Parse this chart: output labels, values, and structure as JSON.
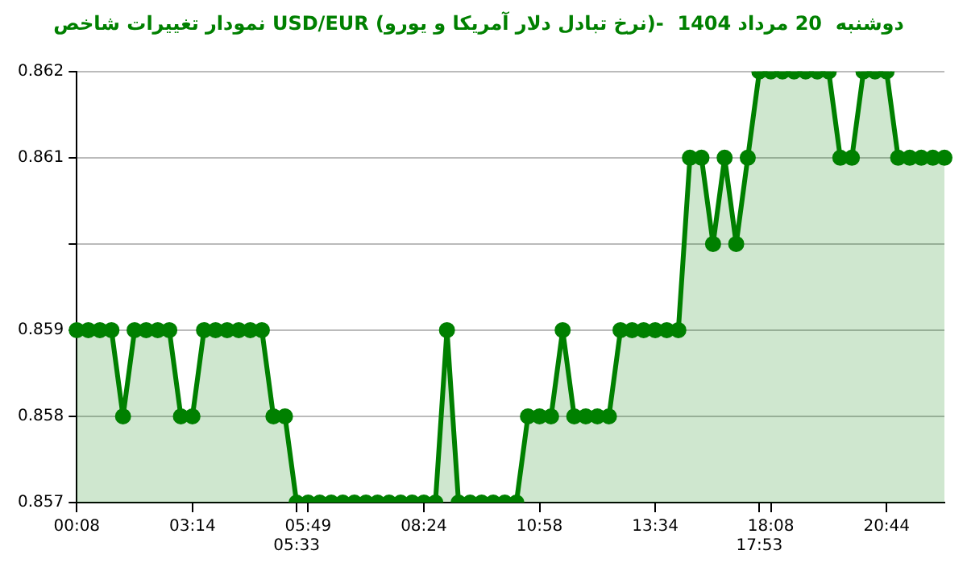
{
  "chart_data": {
    "type": "area",
    "title": "نمودار تغییرات شاخص USD/EUR (نرخ تبادل دلار آمریکا و یورو)-  دوشنبه  20 مرداد 1404",
    "categories": [
      "00:08",
      null,
      null,
      null,
      null,
      null,
      null,
      null,
      null,
      null,
      "03:14",
      null,
      null,
      null,
      null,
      null,
      null,
      null,
      null,
      "05:33",
      "05:49",
      null,
      null,
      null,
      null,
      null,
      null,
      null,
      null,
      null,
      "08:24",
      null,
      null,
      null,
      null,
      null,
      null,
      null,
      null,
      null,
      "10:58",
      null,
      null,
      null,
      null,
      null,
      null,
      null,
      null,
      null,
      "13:34",
      null,
      null,
      null,
      null,
      null,
      null,
      null,
      null,
      "17:53",
      "18:08",
      null,
      null,
      null,
      null,
      null,
      null,
      null,
      null,
      null,
      "20:44",
      null,
      null,
      null,
      null,
      null
    ],
    "series": [
      {
        "color": "#008000",
        "values": [
          0.859,
          0.859,
          0.859,
          0.859,
          0.858,
          0.859,
          0.859,
          0.859,
          0.859,
          0.858,
          0.858,
          0.859,
          0.859,
          0.859,
          0.859,
          0.859,
          0.859,
          0.858,
          0.858,
          0.857,
          0.857,
          0.857,
          0.857,
          0.857,
          0.857,
          0.857,
          0.857,
          0.857,
          0.857,
          0.857,
          0.857,
          0.857,
          0.859,
          0.857,
          0.857,
          0.857,
          0.857,
          0.857,
          0.857,
          0.858,
          0.858,
          0.858,
          0.859,
          0.858,
          0.858,
          0.858,
          0.858,
          0.859,
          0.859,
          0.859,
          0.859,
          0.859,
          0.859,
          0.861,
          0.861,
          0.86,
          0.861,
          0.86,
          0.861,
          0.862,
          0.862,
          0.862,
          0.862,
          0.862,
          0.862,
          0.862,
          0.861,
          0.861,
          0.862,
          0.862,
          0.862,
          0.861,
          0.861,
          0.861,
          0.861,
          0.861
        ]
      }
    ],
    "ylim": [
      0.857,
      0.862
    ],
    "yticks": [
      0.857,
      0.858,
      0.859,
      {
        "value": 0.86,
        "label": null
      },
      0.861,
      0.862
    ],
    "grid": "y",
    "legend": false,
    "marker": "circle"
  }
}
